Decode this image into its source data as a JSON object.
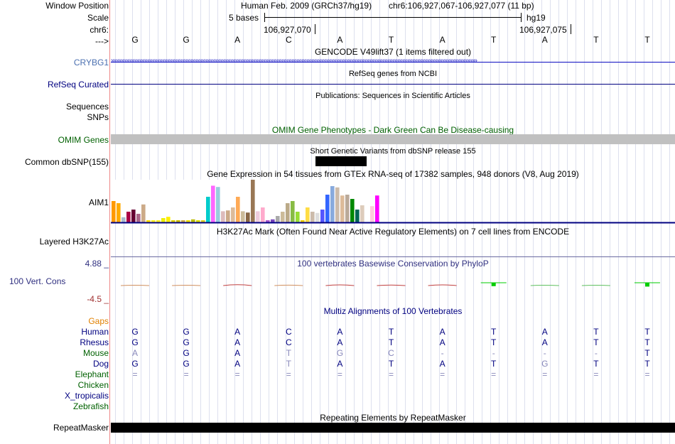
{
  "header": {
    "window_label": "Window Position",
    "scale_label": "Scale",
    "chrom_label": "chr6:",
    "arrow_label": "--->",
    "assembly": "Human Feb. 2009 (GRCh37/hg19)",
    "position": "chr6:106,927,067-106,927,077 (11 bp)",
    "scale_text": "5 bases",
    "scale_db": "hg19",
    "coord1": "106,927,070",
    "coord2": "106,927,075"
  },
  "bases": [
    "G",
    "G",
    "A",
    "C",
    "A",
    "T",
    "A",
    "T",
    "A",
    "T",
    "T"
  ],
  "tracks": {
    "gencode": {
      "title": "GENCODE V49lift37 (1 items filtered out)",
      "label": "CRYBG1"
    },
    "refseq": {
      "title": "RefSeq genes from NCBI",
      "label": "RefSeq Curated"
    },
    "pubs": {
      "title": "Publications: Sequences in Scientific Articles",
      "label": "Sequences"
    },
    "snps_label": "SNPs",
    "omim": {
      "title": "OMIM Gene Phenotypes - Dark Green Can Be Disease-causing",
      "label": "OMIM Genes"
    },
    "dbsnp": {
      "title": "Short Genetic Variants from dbSNP release 155",
      "label": "Common dbSNP(155)"
    },
    "gtex": {
      "title": "Gene Expression in 54 tissues from GTEx RNA-seq of 17382 samples, 948 donors (V8, Aug 2019)",
      "label": "AIM1"
    },
    "h3k27ac": {
      "title": "H3K27Ac Mark (Often Found Near Active Regulatory Elements) on 7 cell lines from ENCODE",
      "label": "Layered H3K27Ac"
    },
    "phylop": {
      "title": "100 vertebrates Basewise Conservation by PhyloP",
      "label": "100 Vert. Cons",
      "max": "4.88 _",
      "min": "-4.5 _"
    },
    "multiz": {
      "title": "Multiz Alignments of 100 Vertebrates",
      "label": "Gaps"
    },
    "repeatmasker": {
      "title": "Repeating Elements by RepeatMasker",
      "label": "RepeatMasker"
    }
  },
  "species": [
    "Human",
    "Rhesus",
    "Mouse",
    "Dog",
    "Elephant",
    "Chicken",
    "X_tropicalis",
    "Zebrafish"
  ],
  "alignment": {
    "Human": [
      "G",
      "G",
      "A",
      "C",
      "A",
      "T",
      "A",
      "T",
      "A",
      "T",
      "T"
    ],
    "Rhesus": [
      "G",
      "G",
      "A",
      "C",
      "A",
      "T",
      "A",
      "T",
      "A",
      "T",
      "T"
    ],
    "Mouse": [
      "A",
      "G",
      "A",
      "T",
      "G",
      "C",
      "-",
      "-",
      "-",
      "-",
      "T"
    ],
    "Dog": [
      "G",
      "G",
      "A",
      "T",
      "A",
      "T",
      "A",
      "T",
      "G",
      "T",
      "T"
    ],
    "Elephant": [
      "=",
      "=",
      "=",
      "=",
      "=",
      "=",
      "=",
      "=",
      "=",
      "=",
      "="
    ]
  },
  "colors": {
    "nav": "#000080",
    "gencode": "#0c0cc0",
    "omim": "#006000",
    "gaps": "#e08000",
    "phylop_neg": "#c04040",
    "phylop_pos": "#00cc00",
    "bar_fill": "#000000",
    "grid": "#dde0ee"
  },
  "gtex_values": [
    0.5,
    0.45,
    0.12,
    0.25,
    0.3,
    0.2,
    0.42,
    0.05,
    0.05,
    0.05,
    0.1,
    0.13,
    0.05,
    0.05,
    0.05,
    0.05,
    0.07,
    0.05,
    0.05,
    0.6,
    0.86,
    0.83,
    0.26,
    0.28,
    0.35,
    0.6,
    0.26,
    0.23,
    1.0,
    0.26,
    0.35,
    0.05,
    0.07,
    0.15,
    0.25,
    0.45,
    0.5,
    0.25,
    0.05,
    0.35,
    0.25,
    0.22,
    0.3,
    0.65,
    0.85,
    0.82,
    0.63,
    0.65,
    0.55,
    0.3,
    0.4,
    0.34,
    0.38,
    0.63
  ],
  "gtex_colors": [
    "#ff9900",
    "#ffaa00",
    "#aabbcc",
    "#aa0044",
    "#660033",
    "#aa6688",
    "#ccaa88",
    "#ffdd00",
    "#ffee22",
    "#ffee22",
    "#eeee00",
    "#ffee00",
    "#ddcc00",
    "#ccbb00",
    "#ccaa44",
    "#eedd00",
    "#bbbb00",
    "#dddd00",
    "#ddcc22",
    "#00cccc",
    "#ff66ff",
    "#99ccdd",
    "#ddbbbb",
    "#ccaa88",
    "#ddbb99",
    "#ffaa55",
    "#ccbb99",
    "#886644",
    "#997755",
    "#eeccdd",
    "#ffaacc",
    "#aa55cc",
    "#7744bb",
    "#aaaaaa",
    "#ccbb99",
    "#bbaa88",
    "#88bb44",
    "#99dd33",
    "#eecc00",
    "#ffdd44",
    "#ccbbaa",
    "#dddddd",
    "#5555ff",
    "#3366ff",
    "#88aadd",
    "#ccbbaa",
    "#ddbb99",
    "#bbaa99",
    "#008800",
    "#006655",
    "#ddccbb",
    "#ffffff",
    "#ffccdd",
    "#ff00ff"
  ],
  "phylop": [
    -0.2,
    -0.2,
    -0.6,
    -0.3,
    -0.5,
    -0.4,
    -0.5,
    0.8,
    -0.1,
    -0.1,
    0.9
  ]
}
